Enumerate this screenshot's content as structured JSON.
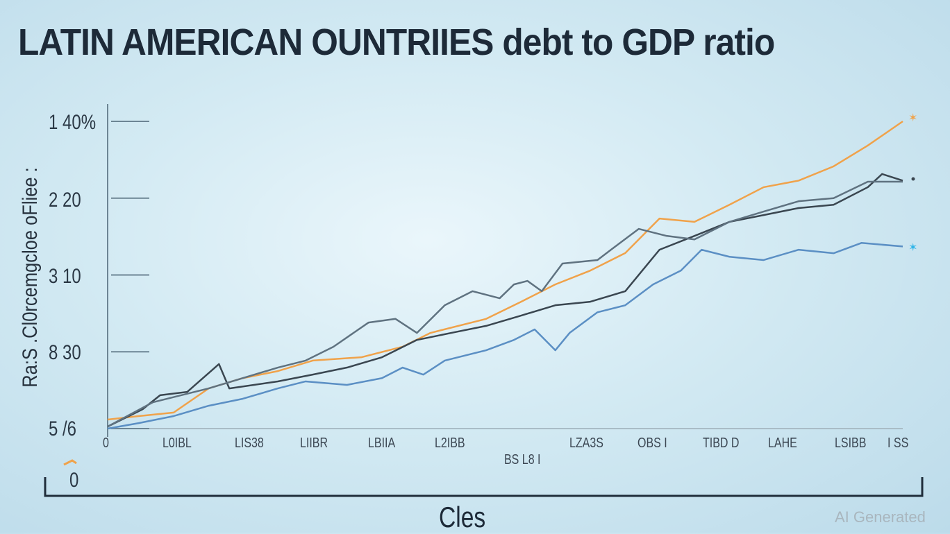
{
  "chart_data": {
    "type": "line",
    "title": "LATIN AMERICAN OUNTRIIES debt to GDP ratio",
    "xlabel": "Cles",
    "ylabel": "Ra:S .Cl0rcemgcloe oFliee :",
    "xlim": [
      0,
      100
    ],
    "ylim": [
      0,
      140
    ],
    "y_ticks": [
      {
        "value": 140,
        "label": "1  40%"
      },
      {
        "value": 105,
        "label": "2  20"
      },
      {
        "value": 70,
        "label": "3  10"
      },
      {
        "value": 35,
        "label": "8  30"
      },
      {
        "value": 0,
        "label": "5  /6"
      }
    ],
    "y_extra_label": "0",
    "x_tick_labels": [
      "L0IBL",
      "LIS38",
      "LIIBR",
      "LBIIA",
      "L2IBB",
      "BS L8 I",
      "LZA3S",
      "OBS I",
      "TIBD D",
      "LAHE",
      "LSIBB",
      "I SS"
    ],
    "x_tick_first": "0",
    "grid": false,
    "legend": "none",
    "series": [
      {
        "name": "orange",
        "color": "#f0a24a",
        "x": [
          0,
          3.9,
          8.3,
          12.7,
          17,
          21.4,
          25.8,
          31.9,
          37.1,
          40.6,
          47.6,
          52,
          56.3,
          60.7,
          65.1,
          69.4,
          73.8,
          78.2,
          82.5,
          86.9,
          91.3,
          95.6,
          100
        ],
        "y": [
          4.1,
          5.7,
          7.3,
          18.3,
          23,
          26.2,
          31,
          32.5,
          37.3,
          43.6,
          50,
          57.8,
          65.7,
          72,
          80,
          95.7,
          94.2,
          102,
          110,
          113,
          119.5,
          129,
          140
        ]
      },
      {
        "name": "dark-gray",
        "color": "#3a4650",
        "x": [
          0,
          4.4,
          6.6,
          10,
          14,
          15.3,
          21.4,
          25.8,
          30.1,
          34.5,
          38.9,
          43.2,
          47.6,
          52,
          56.3,
          60.7,
          65.1,
          69.4,
          73.8,
          78.2,
          82.5,
          86.9,
          91.3,
          95.6,
          97.4,
          100
        ],
        "y": [
          0.9,
          8.8,
          15.2,
          16.7,
          29.4,
          18.3,
          21.5,
          24.6,
          27.8,
          32.5,
          40.4,
          43.6,
          46.8,
          51.5,
          56.2,
          57.8,
          62.6,
          81.5,
          87.8,
          94.2,
          97.3,
          100.5,
          102,
          110,
          116,
          113
        ]
      },
      {
        "name": "slate-gray",
        "color": "#5f7280",
        "x": [
          0,
          5.7,
          12.7,
          17,
          21.4,
          24.9,
          28.4,
          32.8,
          36.2,
          38.9,
          42.4,
          45.9,
          49.3,
          51.1,
          52.8,
          54.6,
          57.2,
          61.6,
          63.3,
          66.8,
          70.3,
          73.8,
          78.2,
          82.5,
          86.9,
          91.3,
          95.6,
          100
        ],
        "y": [
          0.9,
          12,
          18.3,
          23,
          27.8,
          31,
          37.3,
          48.3,
          50,
          43.6,
          56.2,
          62.6,
          59.4,
          65.7,
          67.3,
          62.6,
          75.2,
          76.8,
          81.5,
          91,
          87.8,
          86.2,
          94.2,
          98.9,
          103.6,
          105,
          112.5,
          112.5
        ]
      },
      {
        "name": "blue",
        "color": "#5b8fc4",
        "x": [
          0,
          3.9,
          8.3,
          12.7,
          17,
          21.4,
          24.9,
          30.1,
          34.5,
          37.1,
          39.7,
          42.4,
          47.6,
          51.1,
          53.7,
          56.3,
          58.1,
          61.6,
          65.1,
          68.6,
          72.1,
          74.7,
          78.2,
          82.5,
          86.9,
          91.3,
          94.8,
          100
        ],
        "y": [
          0,
          2.5,
          5.7,
          10.4,
          13.6,
          18.3,
          21.5,
          19.9,
          23,
          27.8,
          24.6,
          31,
          35.7,
          40.4,
          45.2,
          35.7,
          43.6,
          53,
          56.2,
          65.7,
          72,
          81.5,
          78.3,
          76.8,
          81.5,
          79.9,
          84.6,
          83
        ]
      }
    ]
  },
  "watermark": "AI Generated"
}
